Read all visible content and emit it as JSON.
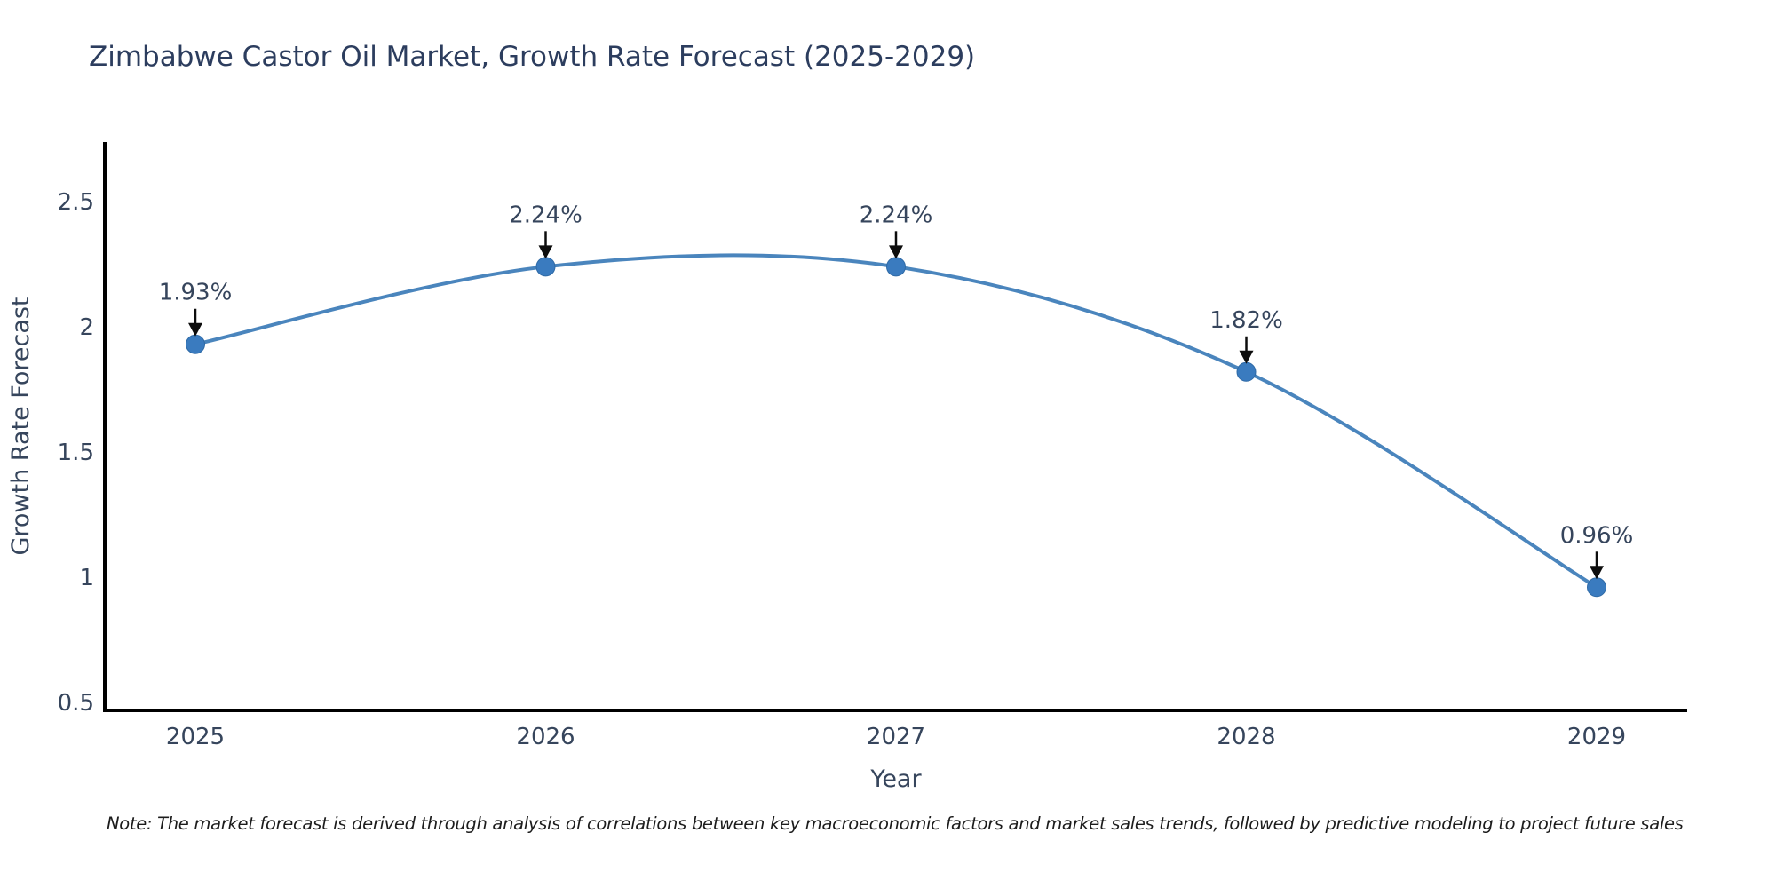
{
  "title": "Zimbabwe Castor Oil Market, Growth Rate Forecast (2025-2029)",
  "note": "Note: The market forecast is derived through analysis of correlations between key macroeconomic factors and market sales trends, followed by predictive modeling to project future sales",
  "x_axis": {
    "label": "Year"
  },
  "y_axis": {
    "label": "Growth Rate Forecast"
  },
  "chart_data": {
    "type": "line",
    "x": [
      "2025",
      "2026",
      "2027",
      "2028",
      "2029"
    ],
    "values": [
      1.93,
      2.24,
      2.24,
      1.82,
      0.96
    ],
    "point_labels": [
      "1.93%",
      "2.24%",
      "2.24%",
      "1.82%",
      "0.96%"
    ],
    "title": "Zimbabwe Castor Oil Market, Growth Rate Forecast (2025-2029)",
    "xlabel": "Year",
    "ylabel": "Growth Rate Forecast",
    "y_ticks": [
      0.5,
      1,
      1.5,
      2,
      2.5
    ],
    "ylim": [
      0.46,
      2.77
    ],
    "grid": false,
    "legend": false,
    "line_style": "smooth-spline",
    "annotations": "black downward arrow from each percentage label to its marker",
    "colors": {
      "line": "#4a85bd",
      "marker": "#3a7bbf",
      "marker_edge": "#2f6aa6",
      "axis": "#000000",
      "text": "#36455c",
      "title": "#2c3d5e",
      "annotation_arrow": "#0d0d0d",
      "background": "#ffffff"
    }
  }
}
